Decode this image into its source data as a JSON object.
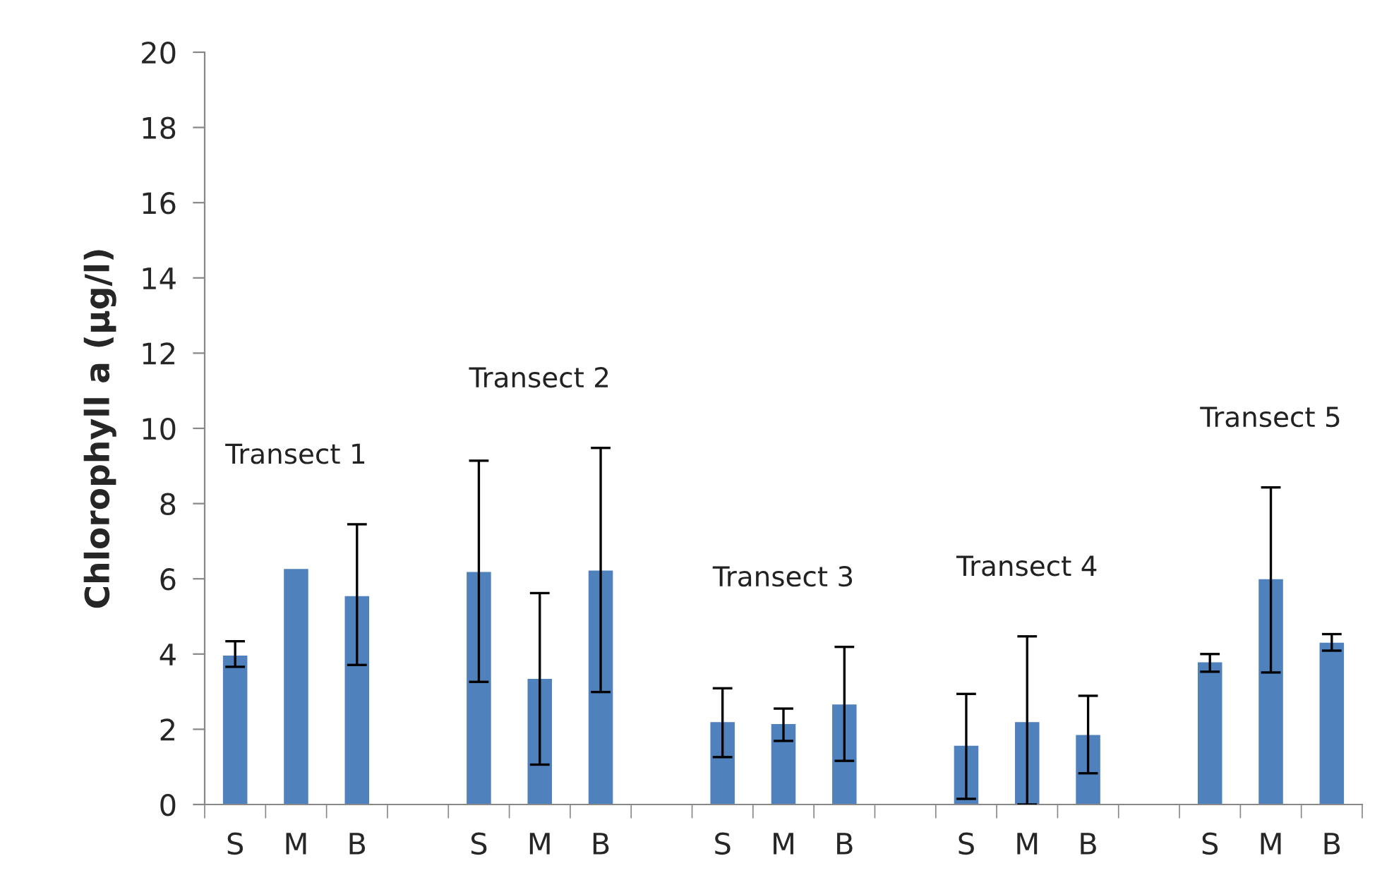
{
  "chart_data": {
    "type": "bar",
    "ylabel": "Chlorophyll a (µg/l)",
    "categories": [
      "S",
      "M",
      "B",
      null,
      "S",
      "M",
      "B",
      null,
      "S",
      "M",
      "B",
      null,
      "S",
      "M",
      "B",
      null,
      "S",
      "M",
      "B"
    ],
    "values": [
      3.96,
      6.26,
      5.54,
      null,
      6.18,
      3.34,
      6.22,
      null,
      2.19,
      2.14,
      2.66,
      null,
      1.56,
      2.19,
      1.85,
      null,
      3.78,
      5.99,
      4.3
    ],
    "errors": [
      [
        3.66,
        4.34
      ],
      null,
      [
        3.71,
        7.45
      ],
      null,
      [
        3.26,
        9.14
      ],
      [
        1.06,
        5.62
      ],
      [
        2.99,
        9.48
      ],
      null,
      [
        1.26,
        3.09
      ],
      [
        1.69,
        2.55
      ],
      [
        1.16,
        4.19
      ],
      null,
      [
        0.15,
        2.94
      ],
      [
        0.0,
        4.47
      ],
      [
        0.83,
        2.89
      ],
      null,
      [
        3.53,
        4.0
      ],
      [
        3.51,
        8.43
      ],
      [
        4.09,
        4.53
      ]
    ],
    "color": "#4f81bd",
    "ylim": [
      0,
      20
    ],
    "yticks": [
      0,
      2,
      4,
      6,
      8,
      10,
      12,
      14,
      16,
      18,
      20
    ],
    "annotations": [
      "Transect 1",
      "Transect 2",
      "Transect 3",
      "Transect 4",
      "Transect 5"
    ],
    "grid": false,
    "legend": false
  }
}
